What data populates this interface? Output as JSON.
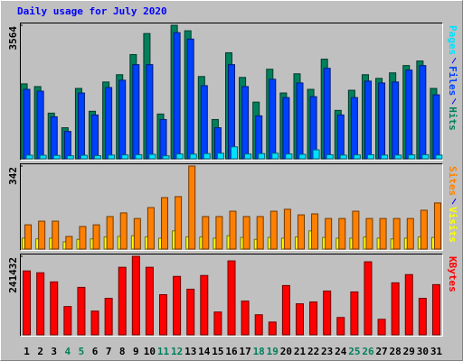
{
  "title": "Daily usage for July 2020",
  "chart_data": [
    {
      "type": "bar",
      "ylim": [
        0,
        3564
      ],
      "yticks": [
        3564
      ],
      "series": [
        {
          "name": "Hits",
          "color": "#00805c",
          "values": [
            2001,
            1928,
            1220,
            830,
            1879,
            1269,
            2050,
            2245,
            2782,
            3343,
            1196,
            3564,
            3417,
            2196,
            1049,
            2830,
            2172,
            1513,
            2391,
            1757,
            2269,
            1854,
            2660,
            1293,
            1830,
            2245,
            2147,
            2294,
            2489,
            2611,
            1879
          ]
        },
        {
          "name": "Files",
          "color": "#0040ff",
          "values": [
            1854,
            1806,
            1122,
            732,
            1757,
            1171,
            1903,
            2098,
            2513,
            2513,
            1049,
            3367,
            3196,
            1952,
            830,
            2513,
            1928,
            1147,
            2123,
            1635,
            2025,
            1659,
            2416,
            1171,
            1635,
            2074,
            2025,
            2050,
            2367,
            2489,
            1708
          ]
        },
        {
          "name": "Pages",
          "color": "#00e0ff",
          "values": [
            98,
            95,
            90,
            80,
            95,
            85,
            100,
            105,
            110,
            120,
            80,
            130,
            125,
            140,
            150,
            320,
            130,
            140,
            150,
            130,
            120,
            240,
            110,
            100,
            105,
            110,
            100,
            100,
            105,
            110,
            100
          ]
        }
      ]
    },
    {
      "type": "bar",
      "ylim": [
        0,
        342
      ],
      "yticks": [
        342
      ],
      "series": [
        {
          "name": "Visits",
          "color": "#ffff00",
          "values": [
            45,
            42,
            45,
            30,
            40,
            42,
            50,
            52,
            55,
            50,
            45,
            75,
            50,
            50,
            45,
            55,
            48,
            40,
            48,
            45,
            50,
            75,
            48,
            45,
            45,
            50,
            45,
            42,
            45,
            50,
            48
          ]
        },
        {
          "name": "Sites",
          "color": "#ff8000",
          "values": [
            100,
            115,
            115,
            52,
            93,
            100,
            134,
            149,
            126,
            171,
            212,
            216,
            342,
            134,
            134,
            156,
            134,
            134,
            156,
            164,
            141,
            145,
            126,
            126,
            156,
            126,
            126,
            126,
            126,
            160,
            190
          ]
        }
      ]
    },
    {
      "type": "bar",
      "ylim": [
        0,
        241432
      ],
      "yticks": [
        241432
      ],
      "categories": [
        "1",
        "2",
        "3",
        "4",
        "5",
        "6",
        "7",
        "8",
        "9",
        "10",
        "11",
        "12",
        "13",
        "14",
        "15",
        "16",
        "17",
        "18",
        "19",
        "20",
        "21",
        "22",
        "23",
        "24",
        "25",
        "26",
        "27",
        "28",
        "29",
        "30",
        "31"
      ],
      "category_colors": [
        "#000000",
        "#000000",
        "#000000",
        "#00805c",
        "#00805c",
        "#000000",
        "#000000",
        "#000000",
        "#000000",
        "#000000",
        "#00805c",
        "#00805c",
        "#000000",
        "#000000",
        "#000000",
        "#000000",
        "#000000",
        "#00805c",
        "#00805c",
        "#000000",
        "#000000",
        "#000000",
        "#000000",
        "#000000",
        "#00805c",
        "#00805c",
        "#000000",
        "#000000",
        "#000000",
        "#000000",
        "#000000"
      ],
      "series": [
        {
          "name": "KBytes",
          "color": "#ff0000",
          "values": [
            196490,
            190876,
            162806,
            87017,
            145964,
            72982,
            112280,
            207718,
            241432,
            207718,
            123508,
            179648,
            140350,
            182455,
            70175,
            227367,
            103859,
            61754,
            39298,
            151578,
            95438,
            101052,
            134736,
            53333,
            131929,
            224560,
            47719,
            160000,
            185262,
            112280,
            154385
          ]
        }
      ]
    }
  ]
}
